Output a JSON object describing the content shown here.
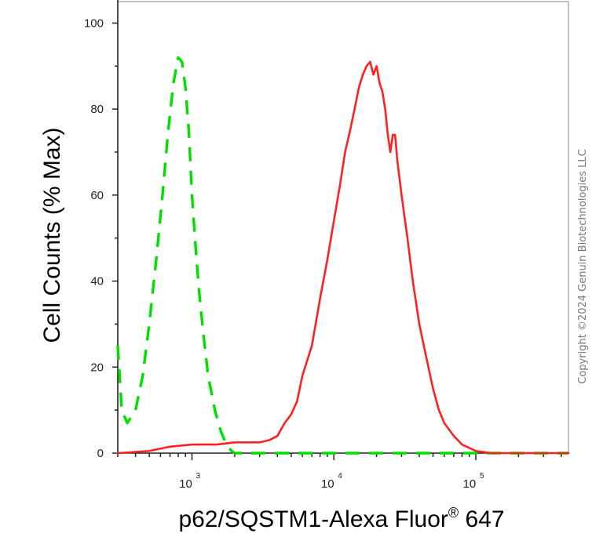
{
  "chart_data": {
    "type": "line",
    "title": "",
    "xlabel": "p62/SQSTM1-Alexa Fluor",
    "xlabel_superscript": "®",
    "xlabel_suffix": " 647",
    "ylabel": "Cell Counts (% Max)",
    "xscale": "log",
    "xlim": [
      300,
      450000
    ],
    "ylim": [
      0,
      105
    ],
    "yticks": [
      0,
      20,
      40,
      60,
      80,
      100
    ],
    "xticks": [
      {
        "value": 1000,
        "base": "10",
        "exp": "3"
      },
      {
        "value": 10000,
        "base": "10",
        "exp": "4"
      },
      {
        "value": 100000,
        "base": "10",
        "exp": "5"
      }
    ],
    "grid": false,
    "legend": "none",
    "series": [
      {
        "color": "#00e000",
        "style": "dashed",
        "x": [
          300,
          320,
          350,
          400,
          450,
          500,
          560,
          620,
          680,
          740,
          800,
          850,
          900,
          950,
          1000,
          1060,
          1120,
          1200,
          1300,
          1450,
          1600,
          1750,
          1900,
          2000,
          3000,
          5000,
          10000,
          30000,
          100000,
          450000
        ],
        "y": [
          25,
          10,
          7,
          10,
          18,
          30,
          45,
          60,
          75,
          86,
          92,
          91,
          85,
          75,
          60,
          48,
          38,
          28,
          18,
          10,
          5,
          2,
          0.5,
          0,
          0,
          0,
          0,
          0,
          0,
          0
        ]
      },
      {
        "color": "#ff2020",
        "style": "solid",
        "x": [
          300,
          500,
          700,
          1000,
          1500,
          2000,
          2500,
          3000,
          3500,
          4000,
          4500,
          5000,
          5500,
          6000,
          7000,
          8000,
          9000,
          10000,
          11000,
          12000,
          13000,
          14000,
          15000,
          16000,
          17000,
          18000,
          19000,
          20000,
          21000,
          22000,
          23000,
          24000,
          25000,
          26000,
          27000,
          28000,
          30000,
          33000,
          36000,
          40000,
          45000,
          50000,
          55000,
          60000,
          70000,
          80000,
          100000,
          130000,
          200000,
          450000
        ],
        "y": [
          0,
          0.5,
          1.5,
          2,
          2,
          2.5,
          2.5,
          2.5,
          3,
          4,
          7,
          9,
          12,
          18,
          25,
          36,
          45,
          54,
          62,
          70,
          75,
          80,
          85,
          88,
          90,
          91,
          88,
          90,
          86,
          84,
          80,
          74,
          70,
          74,
          74,
          68,
          60,
          50,
          40,
          30,
          22,
          15,
          10,
          7,
          4,
          2,
          0.5,
          0,
          0,
          0
        ]
      }
    ]
  },
  "watermark": "Copyright ©2024 Genuin Biotechnologies LLC"
}
